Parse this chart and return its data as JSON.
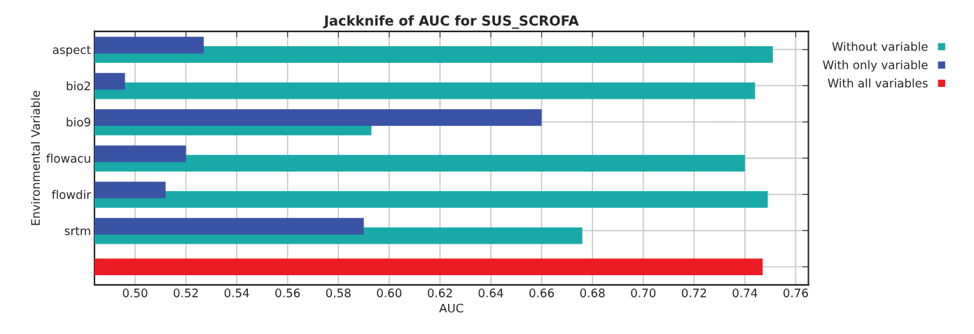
{
  "chart_data": {
    "type": "bar",
    "orientation": "horizontal",
    "title": "Jackknife of AUC for SUS_SCROFA",
    "xlabel": "AUC",
    "ylabel": "Environmental Variable",
    "categories": [
      "aspect",
      "bio2",
      "bio9",
      "flowacu",
      "flowdir",
      "srtm",
      null
    ],
    "series": [
      {
        "name": "Without variable",
        "color": "#19aaa8",
        "values": [
          0.751,
          0.744,
          0.593,
          0.74,
          0.749,
          0.676,
          null
        ]
      },
      {
        "name": "With only variable",
        "color": "#3a53a4",
        "values": [
          0.527,
          0.496,
          0.66,
          0.52,
          0.512,
          0.59,
          null
        ]
      },
      {
        "name": "With all variables",
        "color": "#ed1c24",
        "values": [
          null,
          null,
          null,
          null,
          null,
          null,
          0.747
        ]
      }
    ],
    "xlim": [
      0.484,
      0.765
    ],
    "xticks": [
      {
        "value": 0.5,
        "label": "0.50"
      },
      {
        "value": 0.52,
        "label": "0.52"
      },
      {
        "value": 0.54,
        "label": "0.54"
      },
      {
        "value": 0.56,
        "label": "0.56"
      },
      {
        "value": 0.58,
        "label": "0.58"
      },
      {
        "value": 0.6,
        "label": "0.60"
      },
      {
        "value": 0.62,
        "label": "0.62"
      },
      {
        "value": 0.64,
        "label": "0.64"
      },
      {
        "value": 0.66,
        "label": "0.66"
      },
      {
        "value": 0.68,
        "label": "0.68"
      },
      {
        "value": 0.7,
        "label": "0.70"
      },
      {
        "value": 0.72,
        "label": "0.72"
      },
      {
        "value": 0.74,
        "label": "0.74"
      },
      {
        "value": 0.76,
        "label": "0.76"
      }
    ],
    "grid": true,
    "legend": "top right"
  }
}
